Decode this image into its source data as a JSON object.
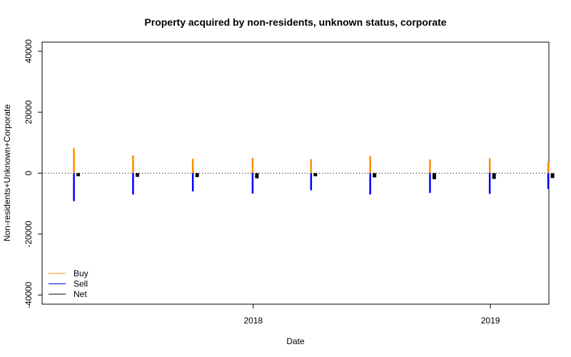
{
  "chart_data": {
    "type": "bar",
    "title": "Property acquired by non-residents, unknown status, corporate",
    "xlabel": "Date",
    "ylabel": "Non-residents+Unknown+Corporate",
    "ylim": [
      -43000,
      43000
    ],
    "yticks": [
      {
        "value": -40000,
        "label": "-40000"
      },
      {
        "value": -20000,
        "label": "-20000"
      },
      {
        "value": 0,
        "label": "0"
      },
      {
        "value": 20000,
        "label": "20000"
      },
      {
        "value": 40000,
        "label": "40000"
      }
    ],
    "xlim": [
      "2017-02-10",
      "2019-04-01"
    ],
    "xticks": [
      {
        "value": "2018-01-01",
        "label": "2018"
      },
      {
        "value": "2019-01-01",
        "label": "2019"
      }
    ],
    "x": [
      "2017-03-31",
      "2017-06-30",
      "2017-09-30",
      "2017-12-31",
      "2018-03-31",
      "2018-06-30",
      "2018-09-30",
      "2018-12-31",
      "2019-03-31"
    ],
    "series": [
      {
        "name": "Buy",
        "color": "#ff8c00",
        "values": [
          8200,
          5800,
          4700,
          5000,
          4600,
          5600,
          4500,
          4900,
          3600
        ]
      },
      {
        "name": "Sell",
        "color": "#0000ff",
        "values": [
          -9200,
          -7000,
          -6000,
          -6700,
          -5600,
          -7000,
          -6500,
          -6800,
          -5200
        ]
      },
      {
        "name": "Net",
        "color": "#000000",
        "values": [
          -1000,
          -1200,
          -1300,
          -1700,
          -1000,
          -1400,
          -2000,
          -1900,
          -1600
        ]
      }
    ],
    "zero_line": true,
    "grid": false,
    "legend": {
      "placement": "bottom-left",
      "entries": [
        "Buy",
        "Sell",
        "Net"
      ]
    }
  }
}
